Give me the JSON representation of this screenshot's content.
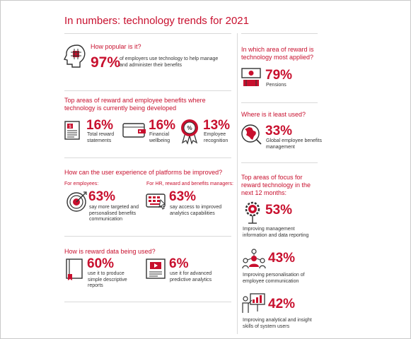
{
  "title": "In numbers: technology trends for 2021",
  "popular": {
    "question": "How popular is it?",
    "stat": "97%",
    "desc": "of employers use technology to help manage and administer their benefits"
  },
  "developing": {
    "question": "Top areas of reward and employee benefits where technology is currently being developed",
    "items": [
      {
        "stat": "16%",
        "label": "Total reward statements",
        "icon": "document-icon"
      },
      {
        "stat": "16%",
        "label": "Financial wellbeing",
        "icon": "wallet-icon"
      },
      {
        "stat": "13%",
        "label": "Employee recognition",
        "icon": "percent-rosette-icon"
      }
    ]
  },
  "experience": {
    "question": "How can the user experience of platforms be improved?",
    "employees": {
      "label": "For employees:",
      "stat": "63%",
      "desc": "say more targeted and personalised benefits communication",
      "icon": "target-icon"
    },
    "hr": {
      "label": "For HR, reward and benefits managers:",
      "stat": "63%",
      "desc": "say access to improved analytics capabilities",
      "icon": "keyboard-icon"
    }
  },
  "data_use": {
    "question": "How is reward data being used?",
    "items": [
      {
        "stat": "60%",
        "desc": "use it to produce simple descriptive reports",
        "icon": "book-icon"
      },
      {
        "stat": "6%",
        "desc": "use it for advanced predictive analytics",
        "icon": "video-report-icon"
      }
    ]
  },
  "most_applied": {
    "question": "In which area of reward is technology most applied?",
    "stat": "79%",
    "label": "Pensions",
    "icon": "money-icon"
  },
  "least_used": {
    "question": "Where is it least used?",
    "stat": "33%",
    "label": "Global employee benefits management",
    "icon": "globe-icon"
  },
  "focus": {
    "question": "Top areas of focus for reward technology in the next 12 months:",
    "items": [
      {
        "stat": "53%",
        "label": "Improving management information and data reporting",
        "icon": "gear-search-icon"
      },
      {
        "stat": "43%",
        "label": "Improving personalisation of employee communication",
        "icon": "people-network-icon"
      },
      {
        "stat": "42%",
        "label": "Improving analytical and insight skills of system users",
        "icon": "presentation-icon"
      }
    ]
  },
  "colors": {
    "accent": "#c8102e",
    "text": "#333333",
    "rule": "#d9d9d9"
  }
}
